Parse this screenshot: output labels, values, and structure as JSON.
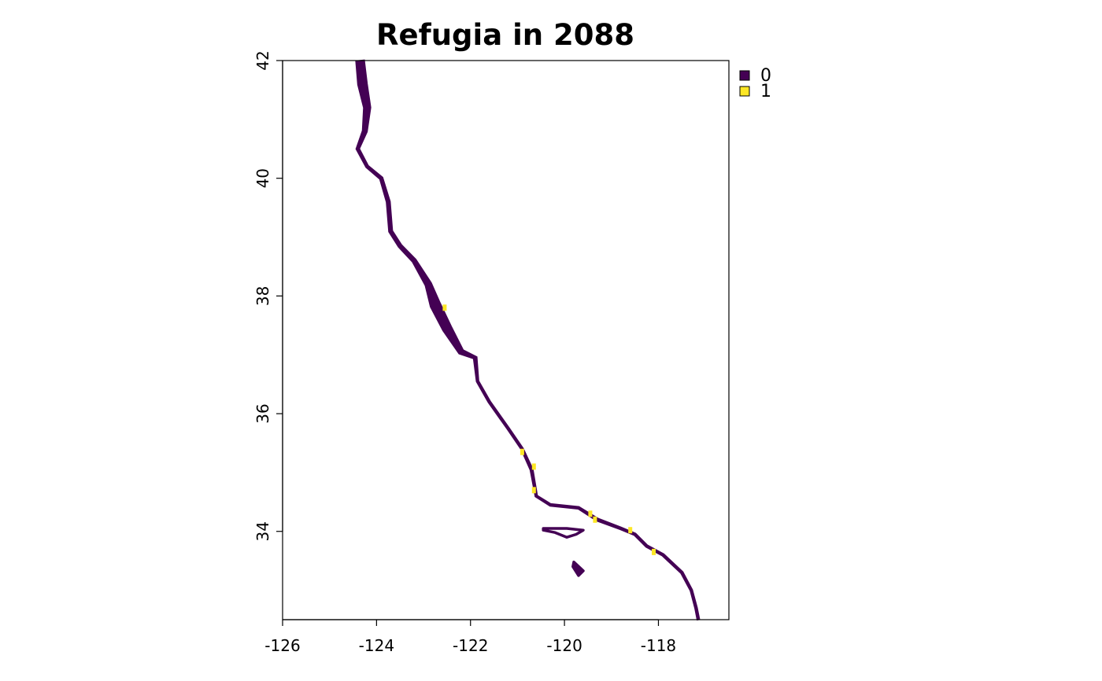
{
  "title": "Refugia in 2088",
  "map": {
    "type": "raster",
    "xlim": [
      -126,
      -116.5
    ],
    "ylim": [
      32.5,
      42
    ],
    "x_ticks": [
      -126,
      -124,
      -122,
      -120,
      -118
    ],
    "x_tick_labels": [
      "-126",
      "-124",
      "-122",
      "-120",
      "-118"
    ],
    "y_ticks": [
      34,
      36,
      38,
      40,
      42
    ],
    "y_tick_labels": [
      "34",
      "36",
      "38",
      "40",
      "42"
    ],
    "legend": {
      "placement": "top-right, outside plot",
      "entries": [
        {
          "label": "0",
          "color": "#440154"
        },
        {
          "label": "1",
          "color": "#FDE725"
        }
      ]
    },
    "coast_zone": {
      "value": 0,
      "color": "#440154",
      "description": "coastal strip along the California shoreline",
      "points": [
        [
          -124.35,
          42.0,
          0.18
        ],
        [
          -124.3,
          41.6,
          0.2
        ],
        [
          -124.2,
          41.2,
          0.15
        ],
        [
          -124.25,
          40.8,
          0.1
        ],
        [
          -124.4,
          40.5,
          0.07
        ],
        [
          -124.2,
          40.2,
          0.06
        ],
        [
          -123.9,
          40.0,
          0.07
        ],
        [
          -123.75,
          39.6,
          0.08
        ],
        [
          -123.7,
          39.1,
          0.08
        ],
        [
          -123.5,
          38.85,
          0.08
        ],
        [
          -123.2,
          38.6,
          0.09
        ],
        [
          -122.9,
          38.2,
          0.14
        ],
        [
          -122.75,
          37.85,
          0.22
        ],
        [
          -122.5,
          37.45,
          0.2
        ],
        [
          -122.2,
          37.05,
          0.12
        ],
        [
          -121.9,
          36.95,
          0.08
        ],
        [
          -121.85,
          36.55,
          0.03
        ],
        [
          -121.6,
          36.2,
          0.03
        ],
        [
          -121.2,
          35.75,
          0.04
        ],
        [
          -120.9,
          35.4,
          0.05
        ],
        [
          -120.7,
          35.05,
          0.06
        ],
        [
          -120.6,
          34.6,
          0.05
        ],
        [
          -120.3,
          34.45,
          0.04
        ],
        [
          -119.7,
          34.4,
          0.05
        ],
        [
          -119.3,
          34.2,
          0.06
        ],
        [
          -118.8,
          34.05,
          0.05
        ],
        [
          -118.5,
          33.95,
          0.04
        ],
        [
          -118.25,
          33.75,
          0.04
        ],
        [
          -117.9,
          33.6,
          0.04
        ],
        [
          -117.5,
          33.3,
          0.04
        ],
        [
          -117.3,
          33.0,
          0.04
        ],
        [
          -117.2,
          32.7,
          0.04
        ],
        [
          -117.15,
          32.5,
          0.04
        ]
      ],
      "islands": [
        [
          [
            -120.45,
            34.05
          ],
          [
            -119.95,
            34.05
          ],
          [
            -119.6,
            34.02
          ],
          [
            -119.75,
            33.95
          ],
          [
            -119.95,
            33.9
          ],
          [
            -120.2,
            33.98
          ],
          [
            -120.45,
            34.02
          ]
        ],
        [
          [
            -119.8,
            33.48
          ],
          [
            -119.6,
            33.33
          ],
          [
            -119.7,
            33.25
          ],
          [
            -119.82,
            33.4
          ]
        ]
      ]
    },
    "refugia_zone": {
      "value": 1,
      "color": "#FDE725",
      "patches": [
        [
          -122.55,
          37.8,
          0.04
        ],
        [
          -120.9,
          35.35,
          0.04
        ],
        [
          -120.65,
          35.1,
          0.05
        ],
        [
          -120.65,
          34.7,
          0.04
        ],
        [
          -119.45,
          34.3,
          0.06
        ],
        [
          -119.35,
          34.2,
          0.05
        ],
        [
          -118.6,
          34.02,
          0.05
        ],
        [
          -118.1,
          33.65,
          0.05
        ]
      ]
    }
  }
}
